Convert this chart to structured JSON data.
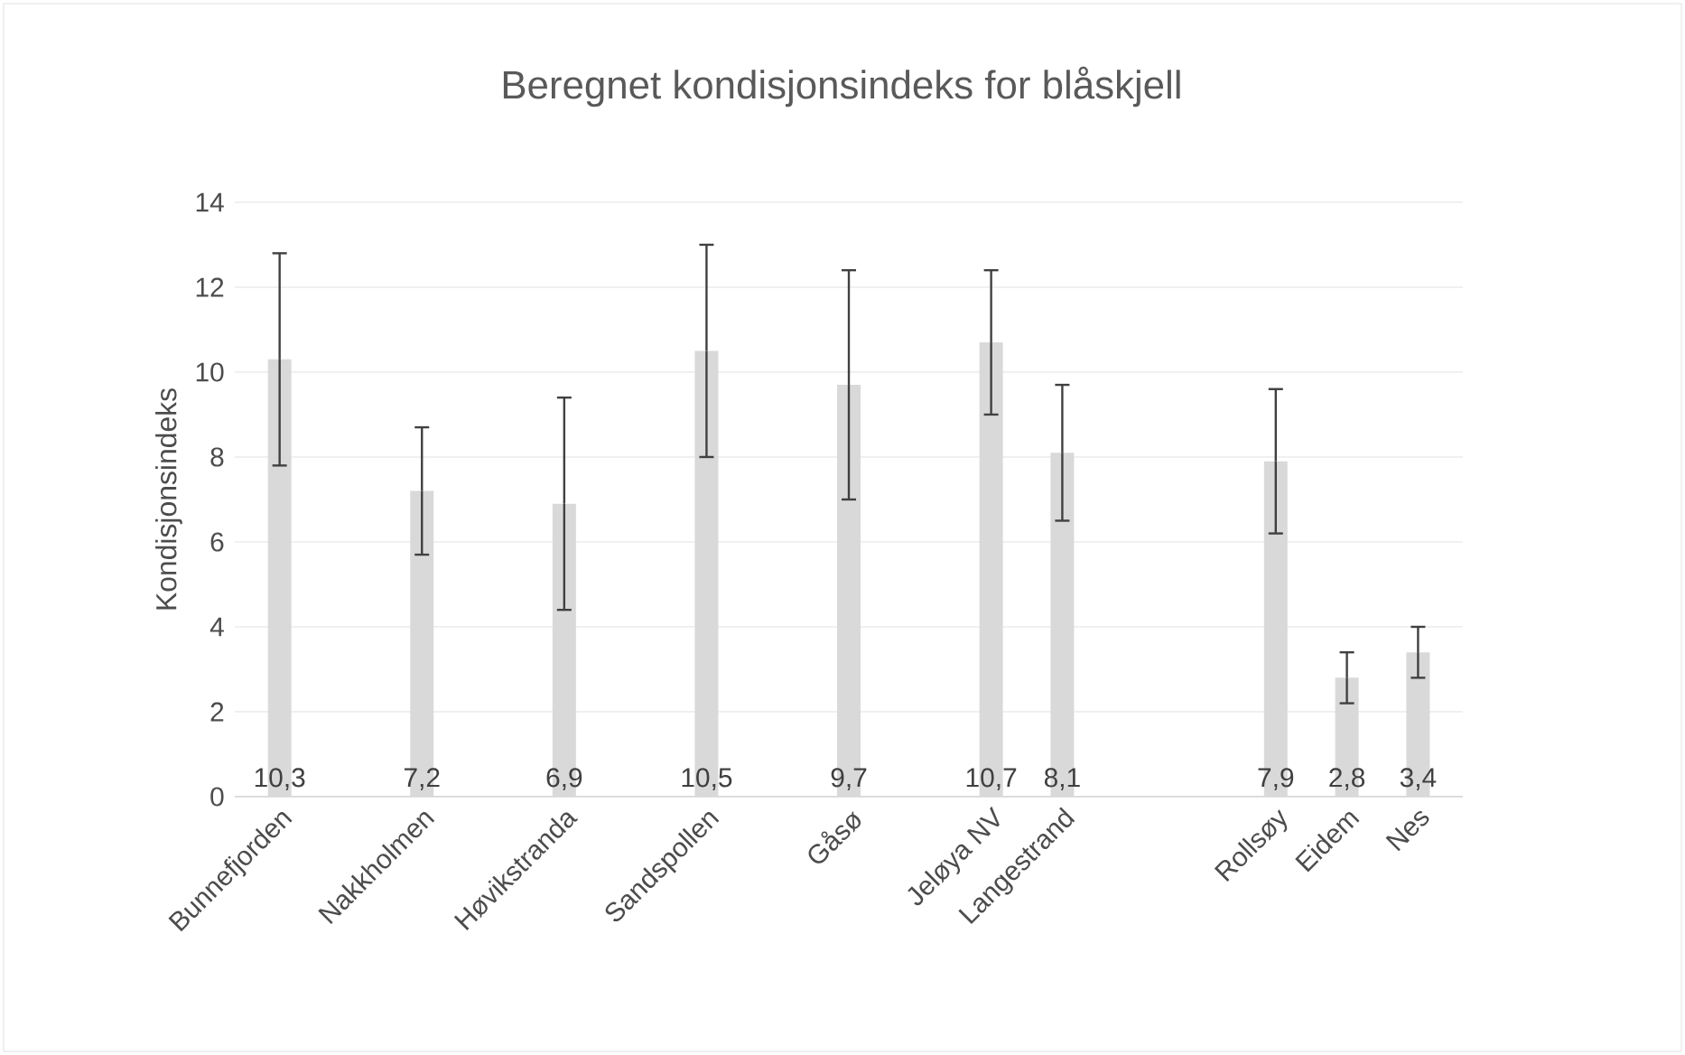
{
  "chart_data": {
    "type": "bar",
    "title": "Beregnet kondisjonsindeks  for blåskjell",
    "ylabel": "Kondisjonsindeks",
    "categories": [
      "Bunnefjorden",
      null,
      "Nakkholmen",
      null,
      "Høvikstranda",
      null,
      "Sandspollen",
      null,
      "Gåsø",
      null,
      "Jeløya NV",
      "Langestrand",
      null,
      null,
      "Rollsøy",
      "Eidem",
      "Nes"
    ],
    "values": [
      10.3,
      null,
      7.2,
      null,
      6.9,
      null,
      10.5,
      null,
      9.7,
      null,
      10.7,
      8.1,
      null,
      null,
      7.9,
      2.8,
      3.4
    ],
    "errors": [
      2.5,
      null,
      1.5,
      null,
      2.5,
      null,
      2.5,
      null,
      2.7,
      null,
      1.7,
      1.6,
      null,
      null,
      1.7,
      0.6,
      0.6
    ],
    "value_labels": [
      "10,3",
      null,
      "7,2",
      null,
      "6,9",
      null,
      "10,5",
      null,
      "9,7",
      null,
      "10,7",
      "8,1",
      null,
      null,
      "7,9",
      "2,8",
      "3,4"
    ],
    "color": "#d9d9d9",
    "ylim": [
      0,
      14
    ],
    "yticks": [
      0,
      2,
      4,
      6,
      8,
      10,
      12,
      14
    ],
    "grid": "y"
  }
}
